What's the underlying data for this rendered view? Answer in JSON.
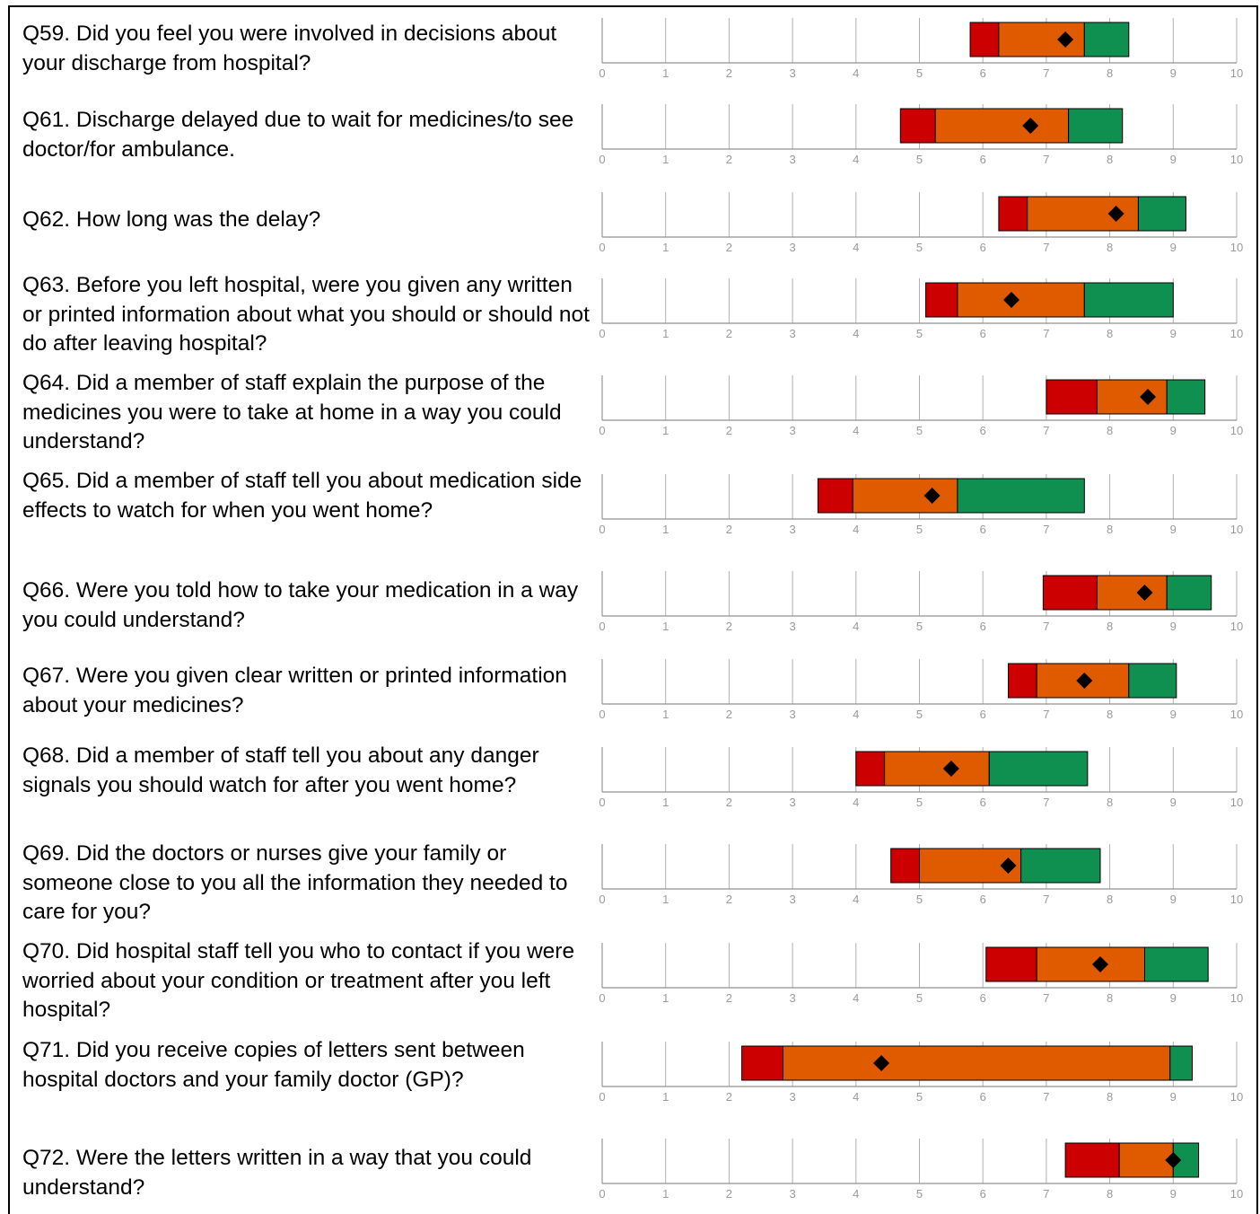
{
  "colors": {
    "low": "#cc0000",
    "mid": "#e05a00",
    "high": "#109050",
    "marker": "#000000",
    "grid": "#b0b0b0",
    "axis": "#909090",
    "tick_label": "#9a9a9a"
  },
  "chart_data": {
    "type": "bar",
    "layout": "horizontal floating stacked range bars with marker, one per question",
    "xlim": [
      0,
      10
    ],
    "tick_labels": [
      "0",
      "1",
      "2",
      "3",
      "4",
      "5",
      "6",
      "7",
      "8",
      "9",
      "10"
    ],
    "series": [
      {
        "name": "",
        "color": "#cc0000"
      },
      {
        "name": "",
        "color": "#e05a00"
      },
      {
        "name": "",
        "color": "#109050"
      }
    ],
    "rows": [
      {
        "question": "Q59. Did you feel you were involved in decisions about your discharge from hospital?",
        "low_start": 5.8,
        "mid_start": 6.25,
        "high_start": 7.6,
        "end": 8.3,
        "score": 7.3
      },
      {
        "question": "Q61. Discharge delayed due to wait for medicines/to see doctor/for ambulance.",
        "low_start": 4.7,
        "mid_start": 5.25,
        "high_start": 7.35,
        "end": 8.2,
        "score": 6.75
      },
      {
        "question": "Q62. How long was the delay?",
        "low_start": 6.25,
        "mid_start": 6.7,
        "high_start": 8.45,
        "end": 9.2,
        "score": 8.1
      },
      {
        "question": "Q63. Before you left hospital, were you given any written or printed information about what you should or should not do after leaving hospital?",
        "low_start": 5.1,
        "mid_start": 5.6,
        "high_start": 7.6,
        "end": 9.0,
        "score": 6.45
      },
      {
        "question": "Q64. Did a member of staff explain the purpose of the medicines you were to take at home in a way you could understand?",
        "low_start": 7.0,
        "mid_start": 7.8,
        "high_start": 8.9,
        "end": 9.5,
        "score": 8.6
      },
      {
        "question": "Q65. Did a member of staff tell you about medication side effects to watch for when you went home?",
        "low_start": 3.4,
        "mid_start": 3.95,
        "high_start": 5.6,
        "end": 7.6,
        "score": 5.2
      },
      {
        "question": "Q66. Were you told how to take your medication in a way you could understand?",
        "low_start": 6.95,
        "mid_start": 7.8,
        "high_start": 8.9,
        "end": 9.6,
        "score": 8.55
      },
      {
        "question": "Q67. Were you given clear written or printed information about your medicines?",
        "low_start": 6.4,
        "mid_start": 6.85,
        "high_start": 8.3,
        "end": 9.05,
        "score": 7.6
      },
      {
        "question": "Q68. Did a member of staff tell you about any danger signals you should watch for after you went home?",
        "low_start": 4.0,
        "mid_start": 4.45,
        "high_start": 6.1,
        "end": 7.65,
        "score": 5.5
      },
      {
        "question": "Q69. Did the doctors or nurses give your family or someone close to you all the information they needed to care for you?",
        "low_start": 4.55,
        "mid_start": 5.0,
        "high_start": 6.6,
        "end": 7.85,
        "score": 6.4
      },
      {
        "question": "Q70. Did hospital staff tell you who to contact if you were worried about your condition or treatment after you left hospital?",
        "low_start": 6.05,
        "mid_start": 6.85,
        "high_start": 8.55,
        "end": 9.55,
        "score": 7.85
      },
      {
        "question": "Q71. Did you receive copies of letters sent between hospital doctors and your family doctor (GP)?",
        "low_start": 2.2,
        "mid_start": 2.85,
        "high_start": 8.95,
        "end": 9.3,
        "score": 4.4
      },
      {
        "question": "Q72. Were the letters written in a way that you could understand?",
        "low_start": 7.3,
        "mid_start": 8.15,
        "high_start": 9.0,
        "end": 9.4,
        "score": 9.0
      }
    ]
  }
}
